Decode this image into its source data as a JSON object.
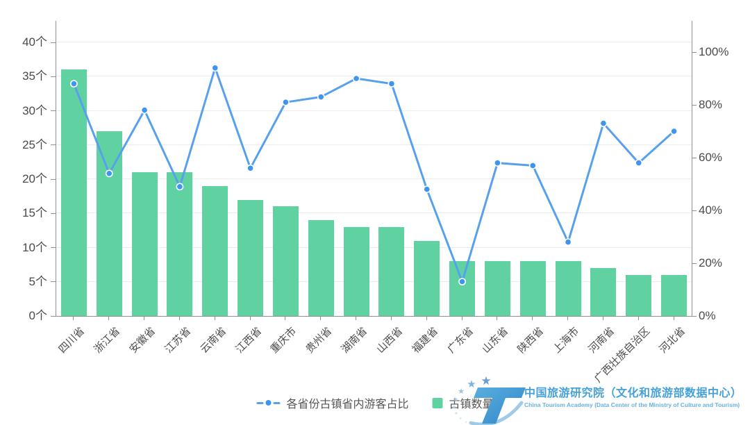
{
  "chart_data": {
    "type": "combo-bar-line",
    "categories": [
      "四川省",
      "浙江省",
      "安徽省",
      "江苏省",
      "云南省",
      "江西省",
      "重庆市",
      "贵州省",
      "湖南省",
      "山西省",
      "福建省",
      "广东省",
      "山东省",
      "陕西省",
      "上海市",
      "河南省",
      "广西壮族自治区",
      "河北省"
    ],
    "series": [
      {
        "name": "古镇数量",
        "type": "bar",
        "axis": "left",
        "color": "#60d2a2",
        "values": [
          36,
          27,
          21,
          21,
          19,
          17,
          16,
          14,
          13,
          13,
          11,
          8,
          8,
          8,
          8,
          7,
          6,
          6
        ]
      },
      {
        "name": "各省份古镇省内游客占比",
        "type": "line",
        "axis": "right",
        "color": "#57a0ee",
        "dot_color": "#3c95ef",
        "values": [
          88,
          54,
          78,
          49,
          94,
          56,
          81,
          83,
          90,
          88,
          48,
          13,
          58,
          57,
          28,
          73,
          58,
          70
        ]
      }
    ],
    "left_axis": {
      "unit": "个",
      "tick_values": [
        0,
        5,
        10,
        15,
        20,
        25,
        30,
        35,
        40
      ],
      "tick_labels": [
        "0个",
        "5个",
        "10个",
        "15个",
        "20个",
        "25个",
        "30个",
        "35个",
        "40个"
      ]
    },
    "right_axis": {
      "unit": "%",
      "tick_values": [
        0,
        20,
        40,
        60,
        80,
        100
      ],
      "tick_labels": [
        "0%",
        "20%",
        "40%",
        "60%",
        "80%",
        "100%"
      ]
    },
    "grid": true,
    "legend_position": "bottom"
  },
  "footer": {
    "brand_cn": "中国旅游研究院（文化和旅游部数据中心）",
    "brand_en": "China Tourism Academy (Data Center of the Ministry of Culture and Tourism)",
    "brand_color": "#45a1d8"
  }
}
